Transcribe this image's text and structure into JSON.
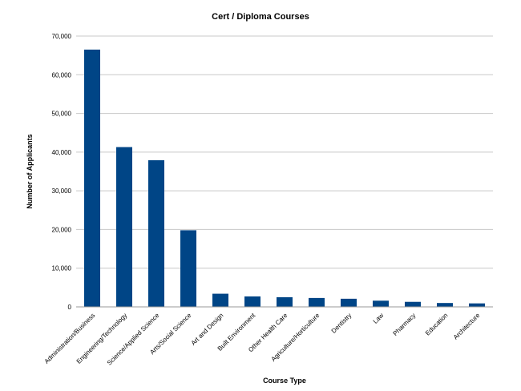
{
  "chart_data": {
    "type": "bar",
    "title": "Cert / Diploma Courses",
    "xlabel": "Course Type",
    "ylabel": "Number of Applicants",
    "ylim": [
      0,
      70000
    ],
    "yticks": [
      "0",
      "10,000",
      "20,000",
      "30,000",
      "40,000",
      "50,000",
      "60,000",
      "70,000"
    ],
    "grid": true,
    "legend": "none",
    "bar_color": "#004586",
    "categories": [
      "Administration/Business",
      "Engineering/Technology",
      "Science/Applied Science",
      "Arts/Social Science",
      "Art and Design",
      "Built Environment",
      "Other Health Care",
      "Agriculture/Horticulture",
      "Dentistry",
      "Law",
      "Pharmacy",
      "Education",
      "Architecture"
    ],
    "values": [
      66500,
      41300,
      37900,
      19800,
      3400,
      2700,
      2500,
      2300,
      2100,
      1600,
      1300,
      1000,
      900
    ]
  }
}
